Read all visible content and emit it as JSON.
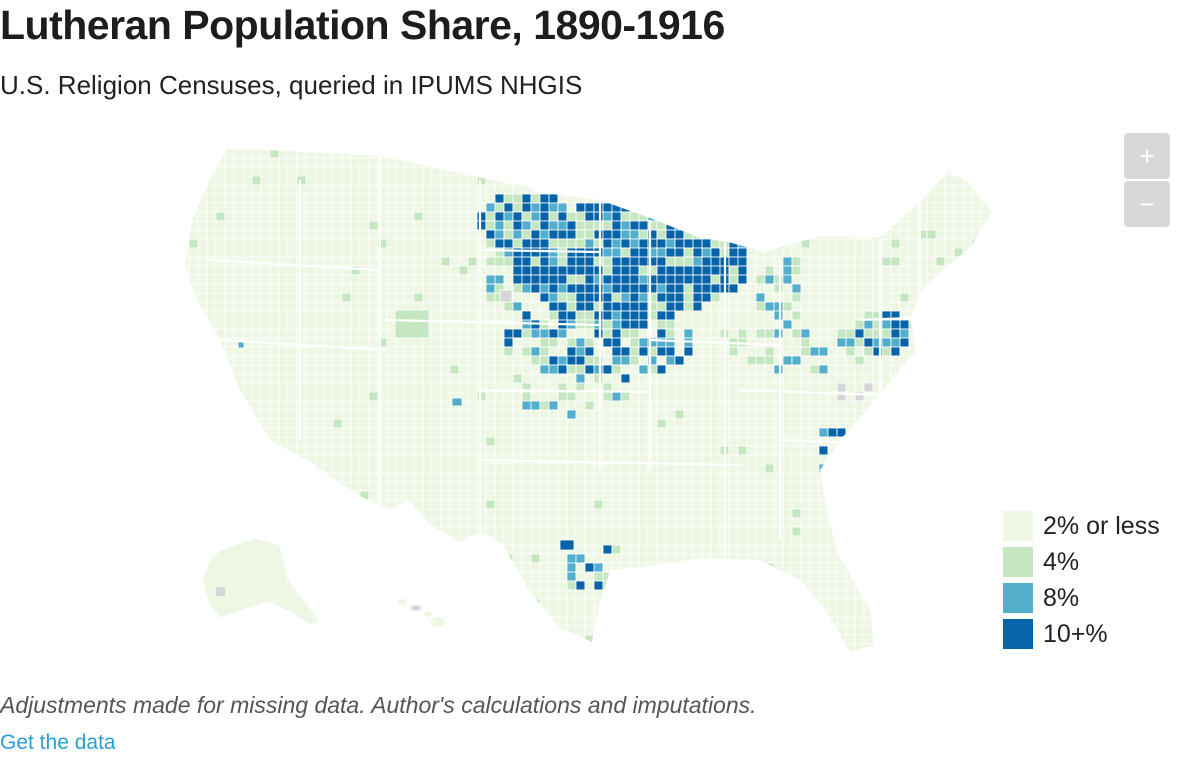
{
  "header": {
    "title": "Lutheran Population Share, 1890-1916",
    "subtitle": "U.S. Religion Censuses, queried in IPUMS NHGIS"
  },
  "zoom": {
    "in_label": "+",
    "out_label": "−"
  },
  "legend": [
    {
      "label": "2% or less",
      "color": "#eef6e4"
    },
    {
      "label": "4%",
      "color": "#c4e6c0"
    },
    {
      "label": "8%",
      "color": "#52aecb"
    },
    {
      "label": "10+%",
      "color": "#0864a8"
    }
  ],
  "map": {
    "missing_color": "#d6d6d6",
    "border_color": "#ffffff"
  },
  "footer": {
    "note": "Adjustments made for missing data. Author's calculations and imputations.",
    "link_text": "Get the data"
  }
}
